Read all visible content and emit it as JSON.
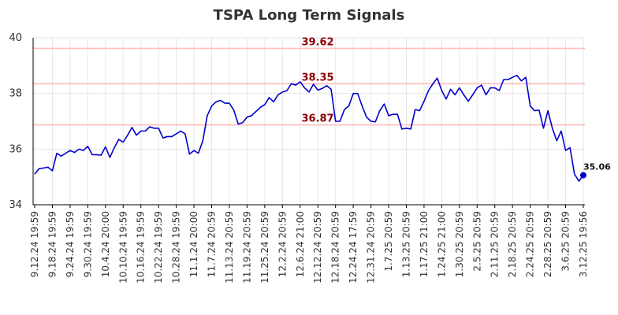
{
  "chart_data": {
    "type": "line",
    "title": "TSPA Long Term Signals",
    "xlabel": "",
    "ylabel": "",
    "ylim": [
      34,
      40
    ],
    "yticks": [
      34,
      36,
      38,
      40
    ],
    "grid": true,
    "x_tick_labels": [
      "9.12.24 19:59",
      "9.18.24 19:59",
      "9.24.24 19:59",
      "9.30.24 19:59",
      "10.4.24 20:00",
      "10.10.24 19:59",
      "10.16.24 19:59",
      "10.22.24 19:59",
      "10.28.24 19:59",
      "11.1.24 20:00",
      "11.7.24 20:59",
      "11.13.24 20:59",
      "11.19.24 20:59",
      "11.25.24 20:59",
      "12.2.24 20:59",
      "12.6.24 21:00",
      "12.12.24 20:59",
      "12.18.24 20:59",
      "12.24.24 17:59",
      "12.31.24 20:59",
      "1.7.25 20:59",
      "1.13.25 20:59",
      "1.17.25 21:00",
      "1.24.25 21:00",
      "1.30.25 20:59",
      "2.5.25 20:59",
      "2.11.25 20:59",
      "2.18.25 20:59",
      "2.24.25 20:59",
      "2.28.25 20:59",
      "3.6.25 20:59",
      "3.12.25 19:56"
    ],
    "series": [
      {
        "color": "#0000cc",
        "values": [
          35.1,
          35.3,
          35.32,
          35.35,
          35.22,
          35.85,
          35.75,
          35.85,
          35.95,
          35.88,
          36.0,
          35.95,
          36.1,
          35.8,
          35.8,
          35.78,
          36.08,
          35.7,
          36.05,
          36.35,
          36.25,
          36.5,
          36.78,
          36.5,
          36.65,
          36.65,
          36.8,
          36.75,
          36.75,
          36.4,
          36.45,
          36.45,
          36.55,
          36.65,
          36.55,
          35.82,
          35.95,
          35.85,
          36.3,
          37.2,
          37.55,
          37.7,
          37.75,
          37.65,
          37.65,
          37.4,
          36.9,
          36.95,
          37.15,
          37.2,
          37.35,
          37.5,
          37.6,
          37.85,
          37.7,
          37.95,
          38.05,
          38.1,
          38.35,
          38.3,
          38.42,
          38.2,
          38.05,
          38.33,
          38.12,
          38.18,
          38.28,
          38.15,
          37.0,
          37.0,
          37.42,
          37.55,
          38.0,
          38.0,
          37.55,
          37.15,
          37.0,
          36.98,
          37.38,
          37.62,
          37.2,
          37.25,
          37.25,
          36.72,
          36.75,
          36.72,
          37.42,
          37.38,
          37.72,
          38.1,
          38.35,
          38.55,
          38.1,
          37.8,
          38.15,
          37.95,
          38.2,
          37.95,
          37.72,
          37.95,
          38.2,
          38.3,
          37.95,
          38.2,
          38.2,
          38.1,
          38.5,
          38.5,
          38.58,
          38.65,
          38.45,
          38.58,
          37.55,
          37.38,
          37.4,
          36.75,
          37.38,
          36.75,
          36.3,
          36.65,
          35.95,
          36.05,
          35.1,
          34.85,
          35.06
        ]
      }
    ],
    "signal_lines": [
      {
        "value": 39.62,
        "label": "39.62",
        "color": "#ffbbbb"
      },
      {
        "value": 38.35,
        "label": "38.35",
        "color": "#ffbbbb"
      },
      {
        "value": 36.87,
        "label": "36.87",
        "color": "#ffbbbb"
      }
    ],
    "last_value_label": "35.06",
    "colors": {
      "line": "#0000cc",
      "signal_line": "#ffbbbb",
      "signal_label": "#8b0000",
      "grid": "#e6e6e6",
      "axis": "#000000"
    }
  }
}
